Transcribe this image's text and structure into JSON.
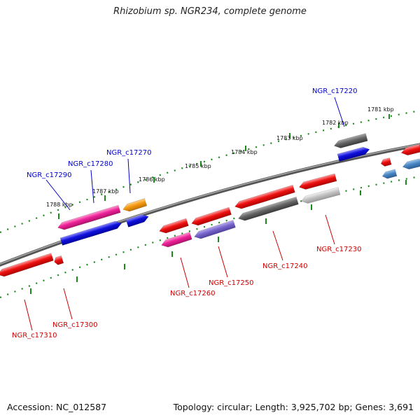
{
  "title": "Rhizobium sp. NGR234, complete genome",
  "footer": {
    "accession": "Accession: NC_012587",
    "topology": "Topology: circular; Length: 3,925,702 bp; Genes: 3,691"
  },
  "colors": {
    "backbone": "#777777",
    "tick": "#1a8a1a",
    "label_top": "#0000cc",
    "label_bottom": "#cc0000",
    "red": "#ee1111",
    "magenta": "#ee2299",
    "blue": "#1111dd",
    "orange": "#f59a10",
    "gray": "#666666",
    "lightgray": "#c4c4c4",
    "purple": "#7a66cc",
    "steelblue": "#4a88c4"
  },
  "kbp_labels": [
    "1781 kbp",
    "1782 kbp",
    "1783 kbp",
    "1784 kbp",
    "1785 kbp",
    "1786 kbp",
    "1787 kbp",
    "1788 kbp"
  ],
  "gene_labels_top": [
    "NGR_c17220",
    "NGR_c17270",
    "NGR_c17280",
    "NGR_c17290"
  ],
  "gene_labels_bottom": [
    "NGR_c17230",
    "NGR_c17240",
    "NGR_c17250",
    "NGR_c17260",
    "NGR_c17300",
    "NGR_c17310"
  ],
  "genes": [
    {
      "track": "top-outer",
      "color": "gray",
      "dir": "left"
    },
    {
      "track": "top-inner",
      "color": "blue",
      "dir": "right"
    },
    {
      "track": "top-inner",
      "color": "red",
      "dir": "left"
    },
    {
      "track": "top-outer",
      "color": "red",
      "dir": "left"
    },
    {
      "track": "bottom-inner",
      "color": "steelblue",
      "dir": "left"
    },
    {
      "track": "bottom-inner",
      "color": "steelblue",
      "dir": "left"
    },
    {
      "track": "bottom-outer",
      "color": "lightgray",
      "dir": "left"
    },
    {
      "track": "bottom-inner",
      "color": "red",
      "dir": "left"
    },
    {
      "track": "bottom-outer",
      "color": "gray",
      "dir": "left"
    },
    {
      "track": "bottom-inner",
      "color": "red",
      "dir": "left"
    },
    {
      "track": "bottom-outer",
      "color": "purple",
      "dir": "left"
    },
    {
      "track": "bottom-inner",
      "color": "red",
      "dir": "left"
    },
    {
      "track": "bottom-outer",
      "color": "magenta",
      "dir": "left"
    },
    {
      "track": "bottom-inner",
      "color": "red",
      "dir": "left"
    },
    {
      "track": "top-inner",
      "color": "orange",
      "dir": "left"
    },
    {
      "track": "top-outer",
      "color": "blue",
      "dir": "right"
    },
    {
      "track": "top-inner",
      "color": "magenta",
      "dir": "left"
    },
    {
      "track": "top-outer",
      "color": "blue",
      "dir": "right"
    },
    {
      "track": "bottom-inner",
      "color": "red",
      "dir": "left"
    },
    {
      "track": "bottom-inner",
      "color": "red",
      "dir": "left"
    }
  ]
}
